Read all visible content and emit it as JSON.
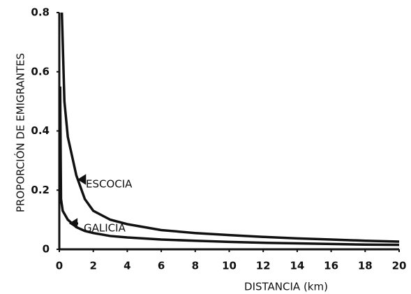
{
  "chart_data": {
    "type": "line",
    "x_label": "DISTANCIA (km)",
    "y_label": "PROPORCIÓN DE EMIGRANTES",
    "xlim": [
      0,
      20
    ],
    "xticks": [
      0,
      2,
      4,
      6,
      8,
      10,
      12,
      14,
      16,
      18,
      20
    ],
    "ylim": [
      0,
      0.8
    ],
    "yticks": [
      0,
      0.2,
      0.4,
      0.6,
      0.8
    ],
    "grid": false,
    "series": [
      {
        "name": "ESCOCIA",
        "color": "#111111",
        "x": [
          0.15,
          0.3,
          0.5,
          1,
          1.5,
          2,
          3,
          4,
          5,
          6,
          8,
          10,
          12,
          14,
          16,
          18,
          20
        ],
        "values": [
          0.8,
          0.5,
          0.38,
          0.25,
          0.17,
          0.13,
          0.1,
          0.085,
          0.075,
          0.065,
          0.055,
          0.048,
          0.042,
          0.037,
          0.033,
          0.029,
          0.026
        ]
      },
      {
        "name": "GALICIA",
        "color": "#111111",
        "x": [
          0.05,
          0.1,
          0.2,
          0.5,
          1,
          1.5,
          2,
          3,
          4,
          6,
          8,
          10,
          12,
          14,
          16,
          18,
          20
        ],
        "values": [
          0.55,
          0.17,
          0.13,
          0.1,
          0.075,
          0.062,
          0.055,
          0.045,
          0.04,
          0.033,
          0.029,
          0.025,
          0.022,
          0.02,
          0.018,
          0.016,
          0.015
        ]
      }
    ]
  }
}
